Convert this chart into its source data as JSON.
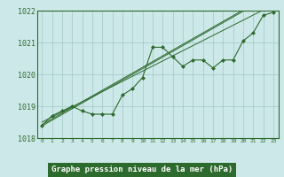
{
  "title": "Graphe pression niveau de la mer (hPa)",
  "x_values": [
    0,
    1,
    2,
    3,
    4,
    5,
    6,
    7,
    8,
    9,
    10,
    11,
    12,
    13,
    14,
    15,
    16,
    17,
    18,
    19,
    20,
    21,
    22,
    23
  ],
  "y_main": [
    1018.4,
    1018.7,
    1018.85,
    1019.0,
    1018.85,
    1018.75,
    1018.75,
    1018.75,
    1019.35,
    1019.55,
    1019.9,
    1020.85,
    1020.85,
    1020.55,
    1020.25,
    1020.45,
    1020.45,
    1020.2,
    1020.45,
    1020.45,
    1021.05,
    1021.3,
    1021.85,
    1021.95
  ],
  "y_trend1": [
    1018.42,
    1018.6,
    1018.78,
    1018.96,
    1019.14,
    1019.32,
    1019.5,
    1019.68,
    1019.86,
    1020.04,
    1020.22,
    1020.4,
    1020.58,
    1020.76,
    1020.94,
    1021.12,
    1021.3,
    1021.48,
    1021.66,
    1021.84,
    1022.02,
    1022.2,
    1022.38,
    1022.56
  ],
  "y_trend2": [
    1018.5,
    1018.66,
    1018.82,
    1018.98,
    1019.14,
    1019.3,
    1019.46,
    1019.62,
    1019.78,
    1019.94,
    1020.1,
    1020.26,
    1020.42,
    1020.58,
    1020.74,
    1020.9,
    1021.06,
    1021.22,
    1021.38,
    1021.54,
    1021.7,
    1021.86,
    1022.02,
    1022.18
  ],
  "y_trend3": [
    1018.38,
    1018.56,
    1018.74,
    1018.92,
    1019.1,
    1019.28,
    1019.46,
    1019.64,
    1019.82,
    1020.0,
    1020.18,
    1020.36,
    1020.54,
    1020.72,
    1020.9,
    1021.08,
    1021.26,
    1021.44,
    1021.62,
    1021.8,
    1021.98,
    1022.16,
    1022.34,
    1022.52
  ],
  "ylim": [
    1018.0,
    1022.0
  ],
  "xlim": [
    -0.5,
    23.5
  ],
  "yticks": [
    1018,
    1019,
    1020,
    1021,
    1022
  ],
  "xtick_labels": [
    "0",
    "1",
    "2",
    "3",
    "4",
    "5",
    "6",
    "7",
    "8",
    "9",
    "10",
    "11",
    "12",
    "13",
    "14",
    "15",
    "16",
    "17",
    "18",
    "19",
    "20",
    "21",
    "22",
    "23"
  ],
  "line_color": "#2d6a2d",
  "bg_color": "#cce8e8",
  "grid_color": "#a0c8c8",
  "title_bg": "#2d6a2d",
  "title_fg": "#ffffff"
}
